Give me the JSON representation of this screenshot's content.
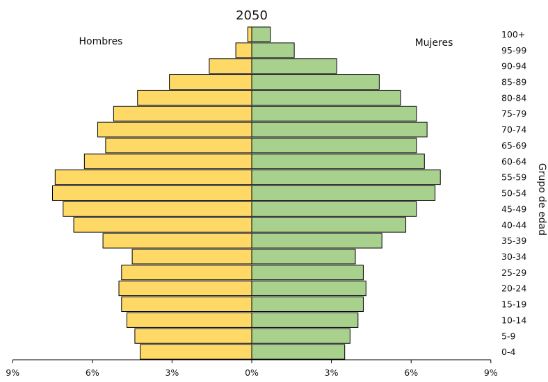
{
  "chart_data": {
    "type": "bar",
    "orientation": "horizontal",
    "layout": "population-pyramid",
    "title": "2050",
    "ylabel": "Grupo de edad",
    "xlim": [
      -9,
      9
    ],
    "x_ticks": [
      -9,
      -6,
      -3,
      0,
      3,
      6,
      9
    ],
    "x_tick_labels": [
      "9%",
      "6%",
      "3%",
      "0%",
      "3%",
      "6%",
      "9%"
    ],
    "categories": [
      "0-4",
      "5-9",
      "10-14",
      "15-19",
      "20-24",
      "25-29",
      "30-34",
      "35-39",
      "40-44",
      "45-49",
      "50-54",
      "55-59",
      "60-64",
      "65-69",
      "70-74",
      "75-79",
      "80-84",
      "85-89",
      "90-94",
      "95-99",
      "100+"
    ],
    "grid": false,
    "legend": "none",
    "series": [
      {
        "name": "Hombres",
        "color": "#FFD966",
        "values": [
          4.2,
          4.4,
          4.7,
          4.9,
          5.0,
          4.9,
          4.5,
          5.6,
          6.7,
          7.1,
          7.5,
          7.4,
          6.3,
          5.5,
          5.8,
          5.2,
          4.3,
          3.1,
          1.6,
          0.6,
          0.15
        ]
      },
      {
        "name": "Mujeres",
        "color": "#A9D18E",
        "values": [
          3.5,
          3.7,
          4.0,
          4.2,
          4.3,
          4.2,
          3.9,
          4.9,
          5.8,
          6.2,
          6.9,
          7.1,
          6.5,
          6.2,
          6.6,
          6.2,
          5.6,
          4.8,
          3.2,
          1.6,
          0.7
        ]
      }
    ]
  }
}
